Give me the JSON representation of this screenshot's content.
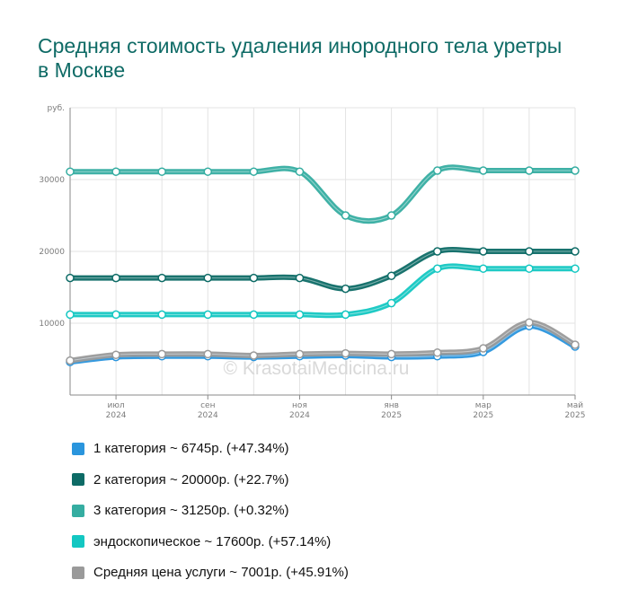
{
  "chart_data": {
    "type": "line",
    "title": "Средняя стоимость удаления инородного тела уретры в Москве",
    "ylabel": "руб.",
    "ylim": [
      0,
      40000
    ],
    "yticks": [
      10000,
      20000,
      30000
    ],
    "x": [
      "2024-06",
      "2024-07",
      "2024-08",
      "2024-09",
      "2024-10",
      "2024-11",
      "2024-12",
      "2025-01",
      "2025-02",
      "2025-03",
      "2025-04",
      "2025-05"
    ],
    "xticks": [
      {
        "month": "июл",
        "year": "2024",
        "index": 1
      },
      {
        "month": "сен",
        "year": "2024",
        "index": 3
      },
      {
        "month": "ноя",
        "year": "2024",
        "index": 5
      },
      {
        "month": "янв",
        "year": "2025",
        "index": 7
      },
      {
        "month": "мар",
        "year": "2025",
        "index": 9
      },
      {
        "month": "май",
        "year": "2025",
        "index": 11
      }
    ],
    "grid": true,
    "legend_position": "bottom",
    "watermark": "© KrasotaiMedicina.ru",
    "series": [
      {
        "name": "3 категория",
        "color": "#35ada1",
        "values": [
          31100,
          31100,
          31100,
          31100,
          31100,
          31100,
          25000,
          25000,
          31250,
          31250,
          31250,
          31250
        ]
      },
      {
        "name": "2 категория",
        "color": "#0d6b66",
        "values": [
          16300,
          16300,
          16300,
          16300,
          16300,
          16300,
          14800,
          16600,
          20000,
          20000,
          20000,
          20000
        ]
      },
      {
        "name": "эндоскопическое",
        "color": "#13c7c2",
        "values": [
          11200,
          11200,
          11200,
          11200,
          11200,
          11200,
          11200,
          12800,
          17600,
          17600,
          17600,
          17600
        ]
      },
      {
        "name": "1 категория",
        "color": "#2a95dd",
        "values": [
          4600,
          5300,
          5400,
          5400,
          5300,
          5400,
          5500,
          5300,
          5400,
          6000,
          9600,
          6745
        ]
      },
      {
        "name": "Средняя цена услуги",
        "color": "#9a9a9a",
        "values": [
          4800,
          5600,
          5700,
          5700,
          5500,
          5700,
          5800,
          5700,
          5900,
          6500,
          10100,
          7001
        ]
      }
    ]
  },
  "legend": [
    {
      "label": "1 категория ~ 6745р. (+47.34%)",
      "color": "#2a95dd"
    },
    {
      "label": "2 категория ~ 20000р. (+22.7%)",
      "color": "#0d6b66"
    },
    {
      "label": "3 категория ~ 31250р. (+0.32%)",
      "color": "#35ada1"
    },
    {
      "label": "эндоскопическое ~ 17600р. (+57.14%)",
      "color": "#13c7c2"
    },
    {
      "label": "Средняя цена услуги ~ 7001р. (+45.91%)",
      "color": "#9a9a9a"
    }
  ]
}
